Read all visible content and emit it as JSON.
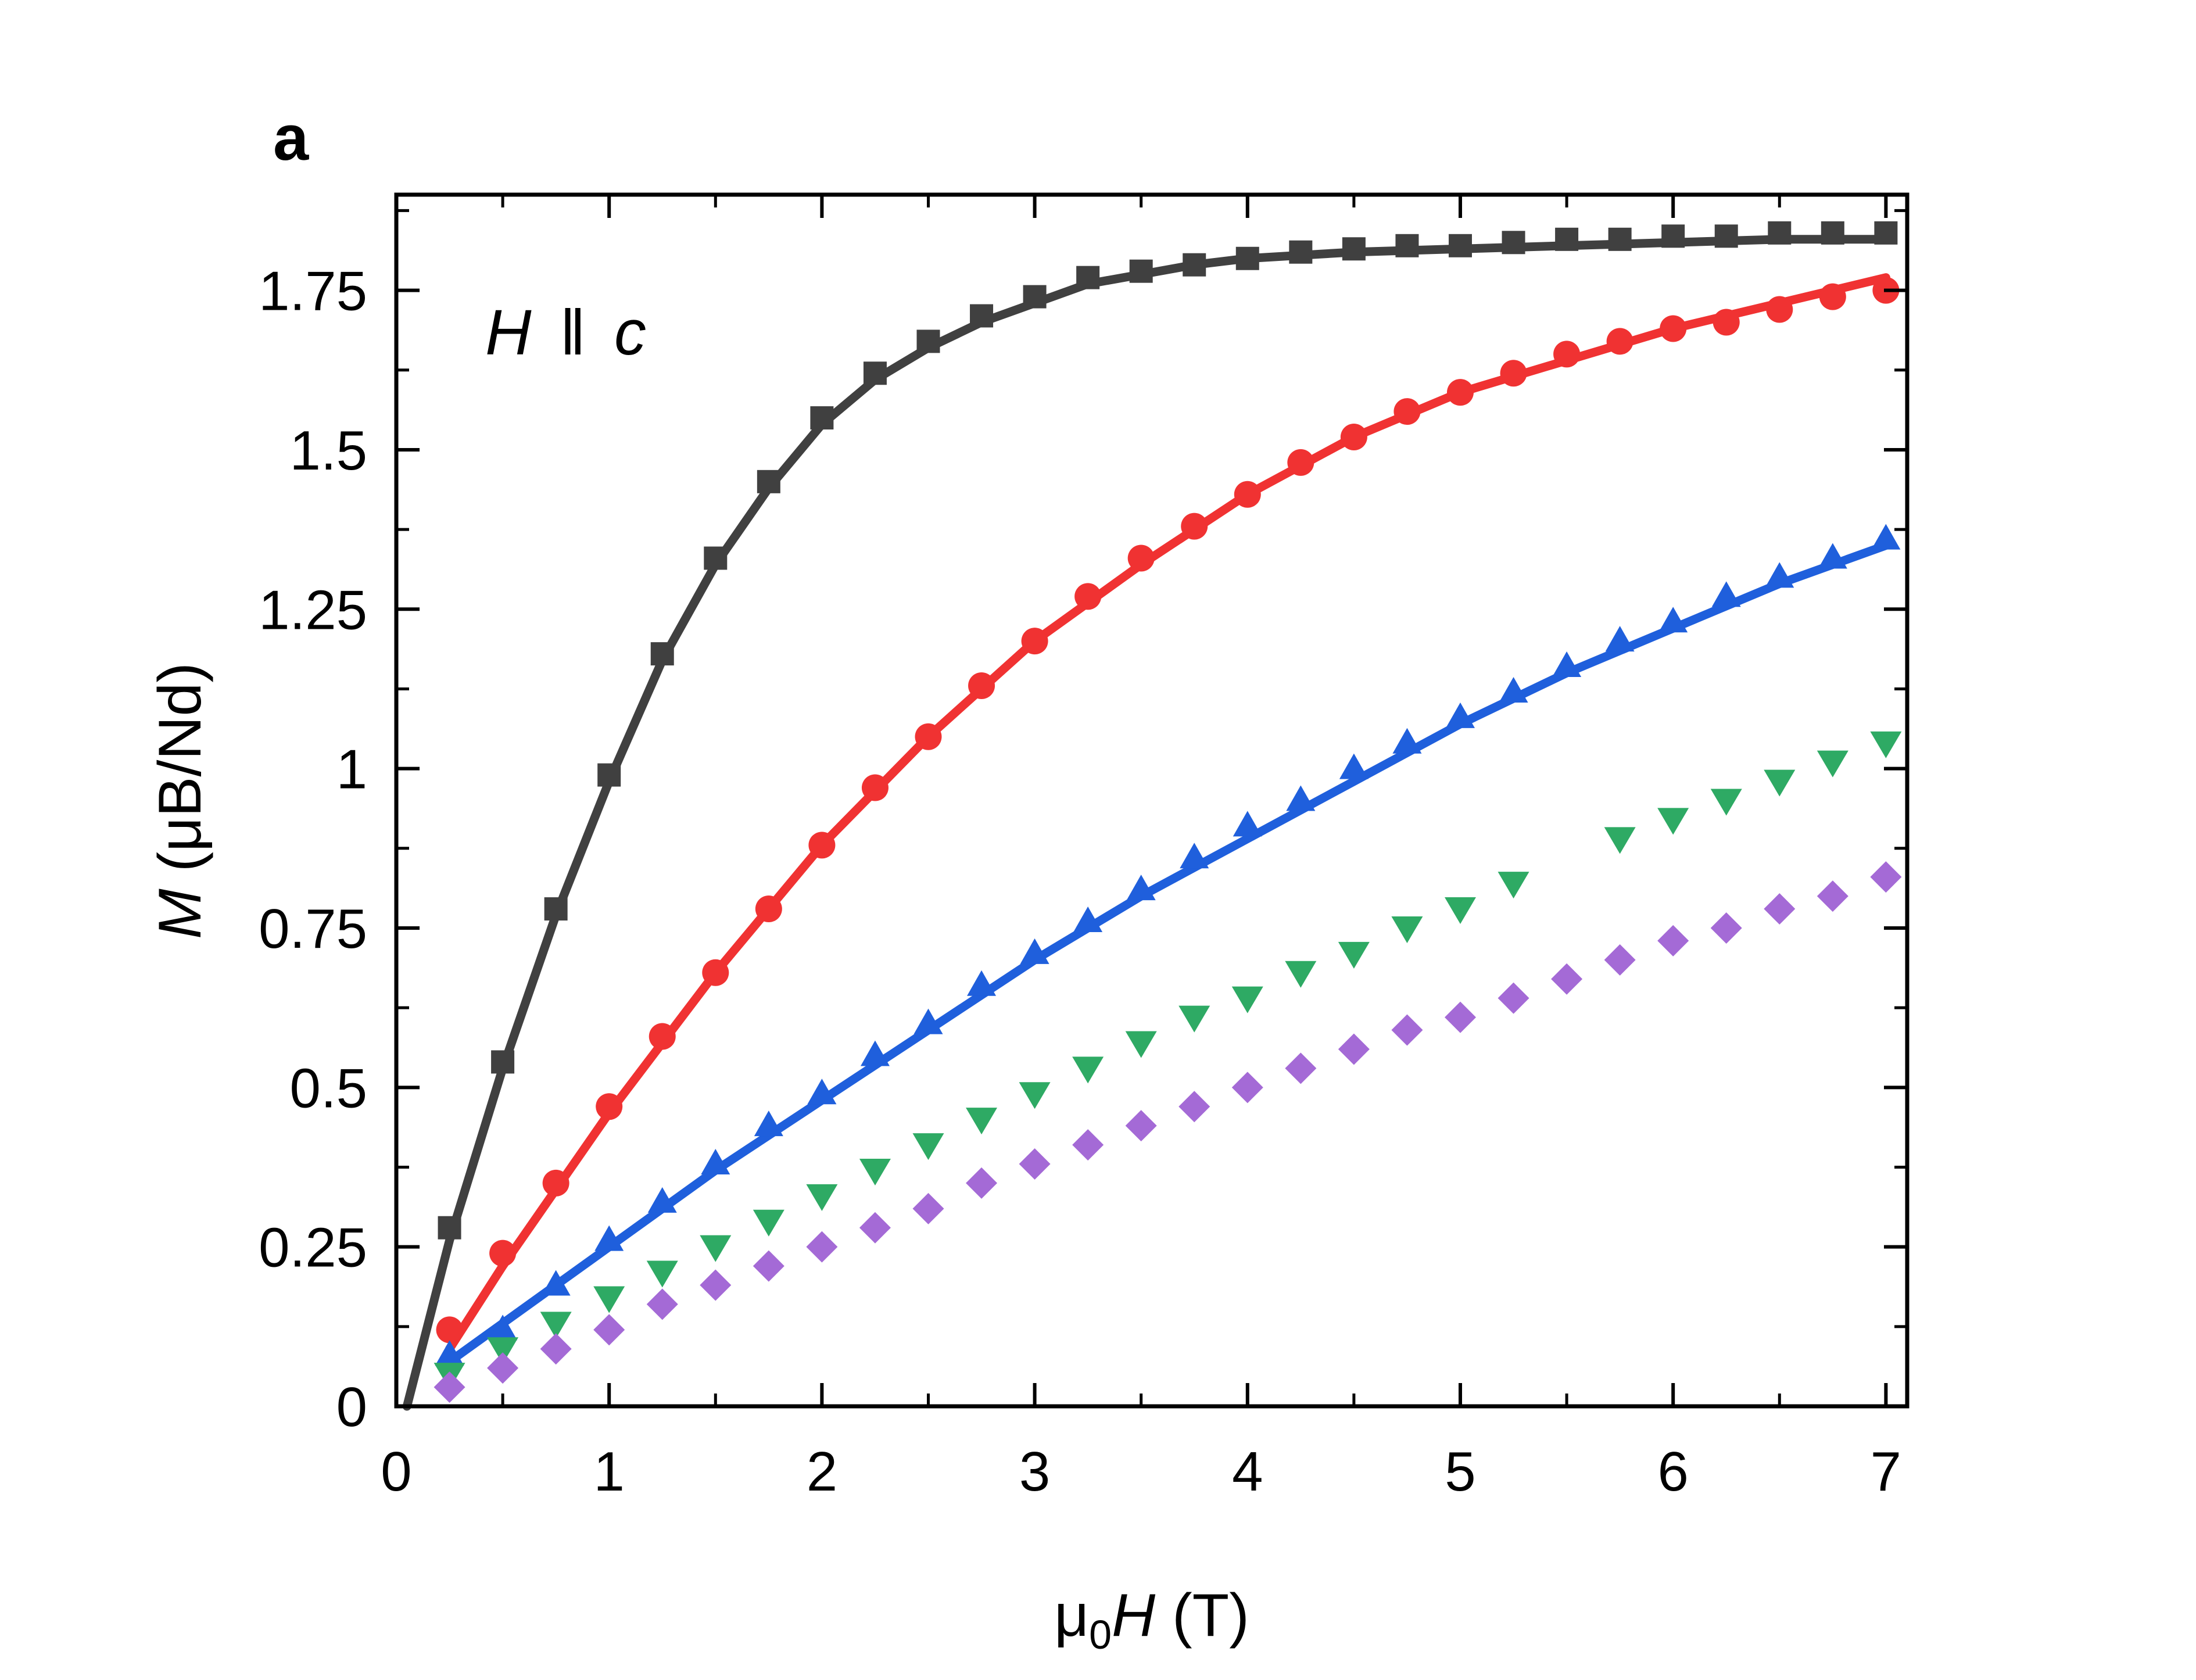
{
  "chart_data": {
    "type": "scatter",
    "panel_label": "a",
    "annotation": {
      "italic_H": "H",
      "parallel": "ǁ",
      "italic_c": "c"
    },
    "xlabel": {
      "mu": "μ",
      "sub": "0",
      "var": "H",
      "unit": " (T)"
    },
    "ylabel": {
      "var": "M",
      "unit": " (μB/Nd)"
    },
    "xlim": [
      0,
      7.1
    ],
    "ylim": [
      0,
      1.9
    ],
    "x_ticks": [
      0,
      1,
      2,
      3,
      4,
      5,
      6,
      7
    ],
    "x_tick_labels": [
      "0",
      "1",
      "2",
      "3",
      "4",
      "5",
      "6",
      "7"
    ],
    "y_ticks": [
      0,
      0.25,
      0.5,
      0.75,
      1,
      1.25,
      1.5,
      1.75
    ],
    "y_tick_labels": [
      "0",
      "0.25",
      "0.5",
      "0.75",
      "1",
      "1.25",
      "1.5",
      "1.75"
    ],
    "grid": false,
    "legend": "none",
    "series": [
      {
        "name": "series-1-black",
        "color": "#404040",
        "marker": "square",
        "x": [
          0.25,
          0.5,
          0.75,
          1.0,
          1.25,
          1.5,
          1.75,
          2.0,
          2.25,
          2.5,
          2.75,
          3.0,
          3.25,
          3.5,
          3.75,
          4.0,
          4.25,
          4.5,
          4.75,
          5.0,
          5.25,
          5.5,
          5.75,
          6.0,
          6.25,
          6.5,
          6.75,
          7.0
        ],
        "y": [
          0.28,
          0.54,
          0.78,
          0.99,
          1.18,
          1.33,
          1.45,
          1.55,
          1.62,
          1.67,
          1.71,
          1.74,
          1.77,
          1.78,
          1.79,
          1.8,
          1.81,
          1.815,
          1.82,
          1.82,
          1.825,
          1.83,
          1.83,
          1.835,
          1.835,
          1.84,
          1.84,
          1.84
        ],
        "fit": {
          "color": "#404040",
          "x": [
            0.05,
            0.25,
            0.5,
            0.75,
            1.0,
            1.25,
            1.5,
            1.75,
            2.0,
            2.25,
            2.5,
            2.75,
            3.0,
            3.25,
            3.5,
            3.75,
            4.0,
            4.5,
            5.0,
            5.5,
            6.0,
            6.5,
            7.0
          ],
          "y": [
            0.0,
            0.26,
            0.53,
            0.77,
            0.98,
            1.17,
            1.32,
            1.44,
            1.54,
            1.61,
            1.66,
            1.7,
            1.73,
            1.76,
            1.775,
            1.79,
            1.8,
            1.81,
            1.815,
            1.82,
            1.825,
            1.83,
            1.83
          ]
        }
      },
      {
        "name": "series-2-red",
        "color": "#f03232",
        "marker": "circle",
        "x": [
          0.25,
          0.5,
          0.75,
          1.0,
          1.25,
          1.5,
          1.75,
          2.0,
          2.25,
          2.5,
          2.75,
          3.0,
          3.25,
          3.5,
          3.75,
          4.0,
          4.25,
          4.5,
          4.75,
          5.0,
          5.25,
          5.5,
          5.75,
          6.0,
          6.25,
          6.5,
          6.75,
          7.0
        ],
        "y": [
          0.12,
          0.24,
          0.35,
          0.47,
          0.58,
          0.68,
          0.78,
          0.88,
          0.97,
          1.05,
          1.13,
          1.2,
          1.27,
          1.33,
          1.38,
          1.43,
          1.48,
          1.52,
          1.56,
          1.59,
          1.62,
          1.65,
          1.67,
          1.69,
          1.7,
          1.72,
          1.74,
          1.75
        ],
        "fit": {
          "color": "#f03232",
          "x": [
            0.25,
            0.5,
            1.0,
            1.5,
            2.0,
            2.5,
            3.0,
            3.5,
            4.0,
            4.5,
            5.0,
            5.5,
            6.0,
            6.5,
            7.0
          ],
          "y": [
            0.09,
            0.22,
            0.46,
            0.68,
            0.88,
            1.05,
            1.2,
            1.32,
            1.43,
            1.52,
            1.59,
            1.64,
            1.69,
            1.73,
            1.77
          ]
        }
      },
      {
        "name": "series-3-blue",
        "color": "#1f5fdc",
        "marker": "triangle-up",
        "x": [
          0.25,
          0.5,
          0.75,
          1.0,
          1.25,
          1.5,
          1.75,
          2.0,
          2.25,
          2.5,
          2.75,
          3.0,
          3.25,
          3.5,
          3.75,
          4.0,
          4.25,
          4.5,
          4.75,
          5.0,
          5.25,
          5.5,
          5.75,
          6.0,
          6.25,
          6.5,
          6.75,
          7.0
        ],
        "y": [
          0.08,
          0.12,
          0.19,
          0.26,
          0.32,
          0.38,
          0.44,
          0.49,
          0.55,
          0.6,
          0.66,
          0.71,
          0.76,
          0.81,
          0.86,
          0.91,
          0.95,
          1.0,
          1.04,
          1.08,
          1.12,
          1.16,
          1.2,
          1.23,
          1.27,
          1.3,
          1.33,
          1.36
        ],
        "fit": {
          "color": "#1f5fdc",
          "x": [
            0.25,
            0.5,
            1.0,
            1.5,
            2.0,
            2.5,
            3.0,
            3.5,
            4.0,
            4.5,
            5.0,
            5.5,
            6.0,
            6.5,
            7.0
          ],
          "y": [
            0.07,
            0.13,
            0.25,
            0.37,
            0.48,
            0.59,
            0.7,
            0.8,
            0.89,
            0.98,
            1.07,
            1.15,
            1.22,
            1.29,
            1.35
          ]
        }
      },
      {
        "name": "series-4-green",
        "color": "#2eaa64",
        "marker": "triangle-down",
        "x": [
          0.25,
          0.5,
          0.75,
          1.0,
          1.25,
          1.5,
          1.75,
          2.0,
          2.25,
          2.5,
          2.75,
          3.0,
          3.25,
          3.5,
          3.75,
          4.0,
          4.25,
          4.5,
          4.75,
          5.0,
          5.25,
          5.75,
          6.0,
          6.25,
          6.5,
          6.75,
          7.0
        ],
        "y": [
          0.05,
          0.09,
          0.13,
          0.17,
          0.21,
          0.25,
          0.29,
          0.33,
          0.37,
          0.41,
          0.45,
          0.49,
          0.53,
          0.57,
          0.61,
          0.64,
          0.68,
          0.71,
          0.75,
          0.78,
          0.82,
          0.89,
          0.92,
          0.95,
          0.98,
          1.01,
          1.04
        ]
      },
      {
        "name": "series-5-purple",
        "color": "#a46ad6",
        "marker": "diamond",
        "x": [
          0.25,
          0.5,
          0.75,
          1.0,
          1.25,
          1.5,
          1.75,
          2.0,
          2.25,
          2.5,
          2.75,
          3.0,
          3.25,
          3.5,
          3.75,
          4.0,
          4.25,
          4.5,
          4.75,
          5.0,
          5.25,
          5.5,
          5.75,
          6.0,
          6.25,
          6.5,
          6.75,
          7.0
        ],
        "y": [
          0.03,
          0.06,
          0.09,
          0.12,
          0.16,
          0.19,
          0.22,
          0.25,
          0.28,
          0.31,
          0.35,
          0.38,
          0.41,
          0.44,
          0.47,
          0.5,
          0.53,
          0.56,
          0.59,
          0.61,
          0.64,
          0.67,
          0.7,
          0.73,
          0.75,
          0.78,
          0.8,
          0.83
        ]
      }
    ]
  }
}
